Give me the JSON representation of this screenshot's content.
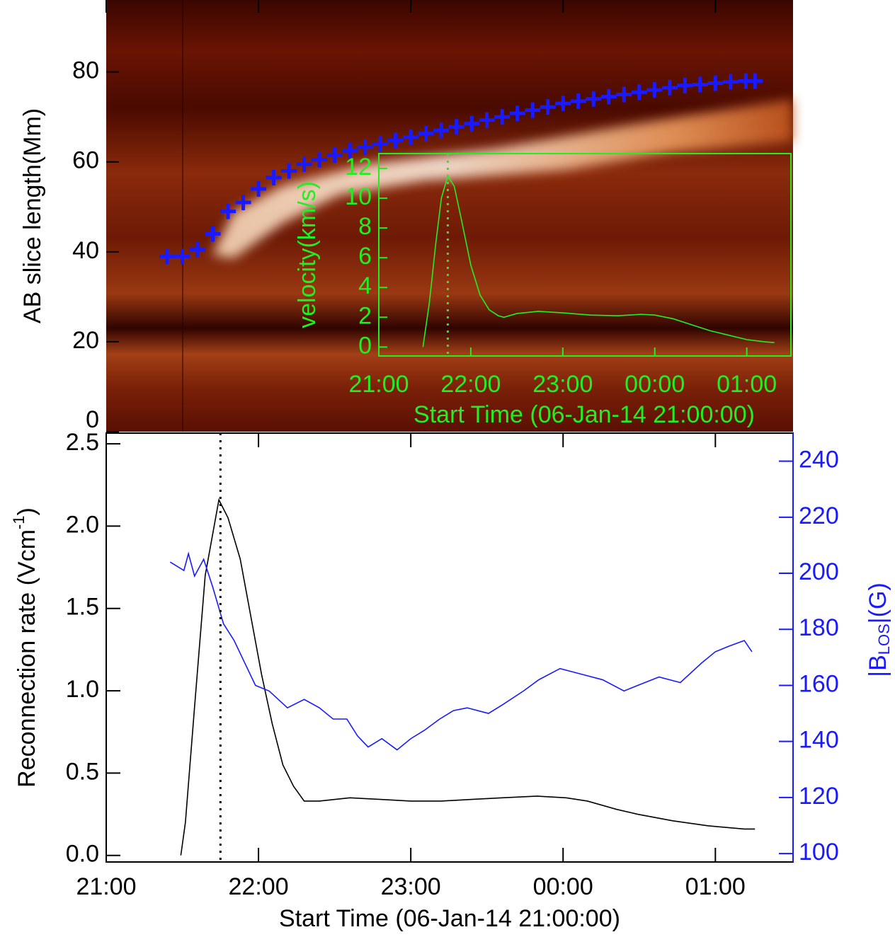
{
  "chart_data": [
    {
      "type": "scatter",
      "ylabel": "AB slice length(Mm)",
      "color": "#1a1aff",
      "xlim": [
        0,
        4.51
      ],
      "ylim": [
        0,
        96
      ],
      "yticks": [
        0,
        20,
        40,
        60,
        80
      ],
      "x": [
        0.4,
        0.5,
        0.6,
        0.7,
        0.8,
        0.9,
        1.0,
        1.1,
        1.2,
        1.3,
        1.4,
        1.5,
        1.6,
        1.7,
        1.8,
        1.9,
        2.0,
        2.1,
        2.2,
        2.3,
        2.4,
        2.5,
        2.6,
        2.7,
        2.8,
        2.9,
        3.0,
        3.1,
        3.2,
        3.3,
        3.4,
        3.5,
        3.6,
        3.7,
        3.8,
        3.9,
        4.0,
        4.1,
        4.2,
        4.26
      ],
      "values": [
        39,
        39,
        40.5,
        44,
        49,
        51,
        54,
        56.5,
        58,
        59.5,
        60.5,
        61.5,
        62.5,
        63.3,
        64,
        64.8,
        65.5,
        66.3,
        67,
        67.8,
        68.5,
        69.3,
        70,
        70.8,
        71.5,
        72.2,
        73,
        73.5,
        74,
        74.5,
        75,
        75.5,
        76,
        76.5,
        77,
        77.2,
        77.5,
        77.8,
        78,
        78
      ]
    },
    {
      "type": "line",
      "xlabel": "Start Time (06-Jan-14 21:00:00)",
      "ylabel": "velocity(km/s)",
      "color": "#22ee22",
      "xlim": [
        0,
        4.48
      ],
      "ylim": [
        -0.6,
        13
      ],
      "xticks": [
        {
          "value": 0,
          "label": "21:00"
        },
        {
          "value": 1,
          "label": "22:00"
        },
        {
          "value": 2,
          "label": "23:00"
        },
        {
          "value": 3,
          "label": "00:00"
        },
        {
          "value": 4,
          "label": "01:00"
        }
      ],
      "yticks": [
        0,
        2,
        4,
        6,
        8,
        10,
        12
      ],
      "vline": 0.75,
      "x": [
        0.48,
        0.55,
        0.62,
        0.68,
        0.75,
        0.82,
        0.9,
        1.0,
        1.1,
        1.2,
        1.3,
        1.36,
        1.5,
        1.73,
        2.0,
        2.3,
        2.6,
        2.85,
        3.0,
        3.2,
        3.4,
        3.6,
        3.8,
        4.0,
        4.2,
        4.3
      ],
      "values": [
        0,
        3,
        7,
        10,
        11.5,
        10.8,
        8.5,
        5.5,
        3.5,
        2.5,
        2.1,
        2.0,
        2.25,
        2.4,
        2.3,
        2.15,
        2.1,
        2.2,
        2.15,
        1.9,
        1.5,
        1.1,
        0.8,
        0.5,
        0.35,
        0.3
      ]
    },
    {
      "type": "line",
      "xlabel": "Start Time (06-Jan-14 21:00:00)",
      "ylabel": [
        "Reconnection rate (Vcm",
        "-1",
        ")"
      ],
      "y2label": [
        "|B",
        "LOS",
        "|(G)"
      ],
      "xlim": [
        0,
        4.51
      ],
      "ylim": [
        -0.04,
        2.565
      ],
      "y2lim": [
        97,
        250
      ],
      "vline": 0.75,
      "xticks": [
        {
          "value": 0,
          "label": "21:00"
        },
        {
          "value": 1,
          "label": "22:00"
        },
        {
          "value": 2,
          "label": "23:00"
        },
        {
          "value": 3,
          "label": "00:00"
        },
        {
          "value": 4,
          "label": "01:00"
        }
      ],
      "yticks": [
        {
          "value": 0,
          "label": "0.0"
        },
        {
          "value": 0.5,
          "label": "0.5"
        },
        {
          "value": 1,
          "label": "1.0"
        },
        {
          "value": 1.5,
          "label": "1.5"
        },
        {
          "value": 2,
          "label": "2.0"
        },
        {
          "value": 2.5,
          "label": "2.5"
        }
      ],
      "y2ticks": [
        100,
        120,
        140,
        160,
        180,
        200,
        220,
        240
      ],
      "series": [
        {
          "color": "#000000",
          "axis": "y",
          "x": [
            0.49,
            0.52,
            0.58,
            0.65,
            0.74,
            0.8,
            0.88,
            0.95,
            1.02,
            1.09,
            1.16,
            1.23,
            1.3,
            1.4,
            1.6,
            1.8,
            2.0,
            2.2,
            2.4,
            2.6,
            2.83,
            3.02,
            3.16,
            3.35,
            3.49,
            3.72,
            3.95,
            4.19,
            4.26
          ],
          "values": [
            0,
            0.2,
            0.9,
            1.7,
            2.16,
            2.05,
            1.8,
            1.45,
            1.1,
            0.8,
            0.55,
            0.42,
            0.33,
            0.33,
            0.35,
            0.34,
            0.33,
            0.33,
            0.34,
            0.35,
            0.36,
            0.35,
            0.33,
            0.28,
            0.25,
            0.21,
            0.18,
            0.16,
            0.16
          ]
        },
        {
          "color": "#1a1aff",
          "axis": "y2",
          "x": [
            0.42,
            0.51,
            0.54,
            0.58,
            0.64,
            0.7,
            0.77,
            0.84,
            0.91,
            0.98,
            1.07,
            1.19,
            1.3,
            1.4,
            1.49,
            1.58,
            1.65,
            1.72,
            1.81,
            1.91,
            2.0,
            2.09,
            2.19,
            2.28,
            2.37,
            2.51,
            2.6,
            2.74,
            2.84,
            2.98,
            3.12,
            3.26,
            3.4,
            3.49,
            3.63,
            3.77,
            3.91,
            4.0,
            4.09,
            4.19,
            4.24
          ],
          "values": [
            204,
            201,
            207,
            199,
            205,
            195,
            182,
            176,
            168,
            160,
            158,
            152,
            155,
            152,
            148,
            148,
            142,
            138,
            141,
            137,
            141,
            144,
            148,
            151,
            152,
            150,
            153,
            158,
            162,
            166,
            164,
            162,
            158,
            160,
            163,
            161,
            168,
            172,
            174,
            176,
            172
          ]
        }
      ]
    }
  ]
}
